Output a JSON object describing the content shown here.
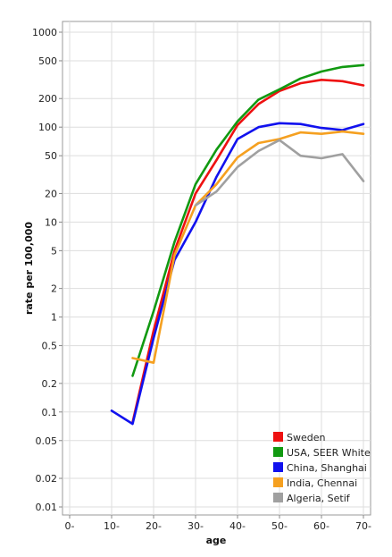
{
  "chart_data": {
    "type": "line",
    "xlabel": "age",
    "ylabel": "rate per 100,000",
    "y_scale": "log",
    "ylim": [
      0.008,
      1500
    ],
    "xlim": [
      -2,
      72
    ],
    "grid": true,
    "legend_position": "bottom-right",
    "x_ticks": [
      {
        "value": 0,
        "label": "0-"
      },
      {
        "value": 10,
        "label": "10-"
      },
      {
        "value": 20,
        "label": "20-"
      },
      {
        "value": 30,
        "label": "30-"
      },
      {
        "value": 40,
        "label": "40-"
      },
      {
        "value": 50,
        "label": "50-"
      },
      {
        "value": 60,
        "label": "60-"
      },
      {
        "value": 70,
        "label": "70-"
      }
    ],
    "y_ticks": [
      {
        "value": 1000,
        "label": "1000"
      },
      {
        "value": 500,
        "label": "500"
      },
      {
        "value": 200,
        "label": "200"
      },
      {
        "value": 100,
        "label": "100"
      },
      {
        "value": 50,
        "label": "50"
      },
      {
        "value": 20,
        "label": "20"
      },
      {
        "value": 10,
        "label": "10"
      },
      {
        "value": 5,
        "label": "5"
      },
      {
        "value": 2,
        "label": "2"
      },
      {
        "value": 1,
        "label": "1"
      },
      {
        "value": 0.5,
        "label": "0.5"
      },
      {
        "value": 0.2,
        "label": "0.2"
      },
      {
        "value": 0.1,
        "label": "0.1"
      },
      {
        "value": 0.05,
        "label": "0.05"
      },
      {
        "value": 0.02,
        "label": "0.02"
      },
      {
        "value": 0.01,
        "label": "0.01"
      }
    ],
    "series": [
      {
        "name": "Sweden",
        "color": "#ee1111",
        "x": [
          15,
          20,
          25,
          30,
          35,
          40,
          45,
          50,
          55,
          60,
          65,
          70
        ],
        "y": [
          0.078,
          0.72,
          5.0,
          20,
          45,
          105,
          175,
          240,
          290,
          315,
          305,
          275
        ]
      },
      {
        "name": "USA, SEER White",
        "color": "#119911",
        "x": [
          15,
          20,
          25,
          30,
          35,
          40,
          45,
          50,
          55,
          60,
          65,
          70
        ],
        "y": [
          0.24,
          1.15,
          6.2,
          25,
          58,
          115,
          195,
          250,
          325,
          385,
          430,
          450
        ]
      },
      {
        "name": "China, Shanghai",
        "color": "#1111ee",
        "x": [
          10,
          15,
          20,
          25,
          30,
          35,
          40,
          45,
          50,
          55,
          60,
          65,
          70
        ],
        "y": [
          0.103,
          0.075,
          0.6,
          4.0,
          10,
          30,
          75,
          100,
          110,
          108,
          98,
          93,
          108
        ]
      },
      {
        "name": "India, Chennai",
        "color": "#f5a020",
        "x": [
          15,
          20,
          25,
          30,
          35,
          40,
          45,
          50,
          55,
          60,
          65,
          70
        ],
        "y": [
          0.37,
          0.33,
          4.5,
          15,
          25,
          48,
          68,
          75,
          88,
          85,
          90,
          85
        ]
      },
      {
        "name": "Algeria, Setif",
        "color": "#a0a0a0",
        "x": [
          30,
          35,
          40,
          45,
          50,
          55,
          60,
          65,
          70
        ],
        "y": [
          15,
          21,
          38,
          56,
          73,
          50,
          47,
          52,
          27
        ]
      }
    ]
  }
}
